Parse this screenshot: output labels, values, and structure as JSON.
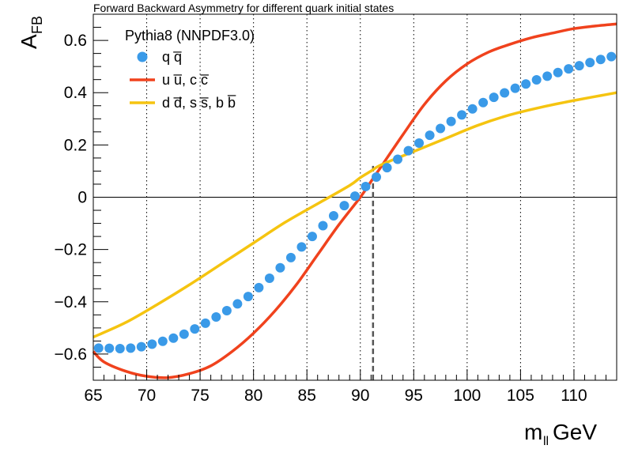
{
  "chart_data": {
    "type": "line",
    "title": "Forward Backward Asymmetry for different quark initial states",
    "xlabel": {
      "main": "m",
      "sub": "ll",
      "unit": "GeV"
    },
    "ylabel": {
      "main": "A",
      "sub": "FB"
    },
    "xlim": [
      65,
      114
    ],
    "ylim": [
      -0.7,
      0.7
    ],
    "x_ticks": [
      65,
      70,
      75,
      80,
      85,
      90,
      95,
      100,
      105,
      110
    ],
    "x_tick_labels": [
      "65",
      "70",
      "75",
      "80",
      "85",
      "90",
      "95",
      "100",
      "105",
      "110"
    ],
    "y_ticks": [
      -0.6,
      -0.4,
      -0.2,
      0,
      0.2,
      0.4,
      0.6
    ],
    "y_tick_labels": [
      "−0.6",
      "−0.4",
      "−0.2",
      "0",
      "0.2",
      "0.4",
      "0.6"
    ],
    "vertical_gridlines": [
      70,
      75,
      80,
      85,
      90,
      95,
      100,
      105,
      110
    ],
    "z_mass_line": 91.19,
    "legend": {
      "header": "Pythia8 (NNPDF3.0)",
      "placement": "top-left",
      "entries": [
        {
          "label": "q q̅",
          "series": "qqbar"
        },
        {
          "label": "u u̅, c c̅",
          "series": "up"
        },
        {
          "label": "d d̅, s s̅, b b̅",
          "series": "down"
        }
      ]
    },
    "series": [
      {
        "name": "q q̅",
        "id": "qqbar",
        "style": "markers",
        "color": "#3a9ae8",
        "x": [
          65.5,
          66.5,
          67.5,
          68.5,
          69.5,
          70.5,
          71.5,
          72.5,
          73.5,
          74.5,
          75.5,
          76.5,
          77.5,
          78.5,
          79.5,
          80.5,
          81.5,
          82.5,
          83.5,
          84.5,
          85.5,
          86.5,
          87.5,
          88.5,
          89.5,
          90.5,
          91.5,
          92.5,
          93.5,
          94.5,
          95.5,
          96.5,
          97.5,
          98.5,
          99.5,
          100.5,
          101.5,
          102.5,
          103.5,
          104.5,
          105.5,
          106.5,
          107.5,
          108.5,
          109.5,
          110.5,
          111.5,
          112.5,
          113.5
        ],
        "y": [
          -0.577,
          -0.578,
          -0.579,
          -0.577,
          -0.572,
          -0.562,
          -0.551,
          -0.539,
          -0.524,
          -0.504,
          -0.482,
          -0.458,
          -0.434,
          -0.408,
          -0.38,
          -0.346,
          -0.31,
          -0.27,
          -0.231,
          -0.19,
          -0.15,
          -0.109,
          -0.071,
          -0.032,
          0.004,
          0.041,
          0.077,
          0.113,
          0.145,
          0.178,
          0.207,
          0.237,
          0.263,
          0.29,
          0.315,
          0.338,
          0.362,
          0.382,
          0.399,
          0.417,
          0.433,
          0.449,
          0.463,
          0.477,
          0.491,
          0.503,
          0.515,
          0.527,
          0.538
        ]
      },
      {
        "name": "u u̅, c c̅",
        "id": "up",
        "style": "line",
        "color": "#f0421d",
        "x": [
          65,
          66,
          68,
          70,
          72,
          74,
          76,
          78,
          80,
          82,
          84,
          86,
          88,
          90,
          91,
          92,
          94,
          96,
          98,
          100,
          102,
          104,
          106,
          108,
          110,
          112,
          114
        ],
        "y": [
          -0.59,
          -0.63,
          -0.665,
          -0.685,
          -0.69,
          -0.675,
          -0.645,
          -0.59,
          -0.52,
          -0.435,
          -0.335,
          -0.22,
          -0.105,
          0.0,
          0.06,
          0.12,
          0.24,
          0.355,
          0.445,
          0.51,
          0.555,
          0.585,
          0.61,
          0.628,
          0.645,
          0.655,
          0.663
        ]
      },
      {
        "name": "d d̅, s s̅, b b̅",
        "id": "down",
        "style": "line",
        "color": "#f5c410",
        "x": [
          65,
          68,
          71,
          74,
          77,
          80,
          83,
          86,
          89,
          90,
          91,
          92,
          95,
          98,
          101,
          104,
          107,
          110,
          114
        ],
        "y": [
          -0.535,
          -0.48,
          -0.41,
          -0.335,
          -0.255,
          -0.175,
          -0.095,
          -0.025,
          0.045,
          0.075,
          0.1,
          0.125,
          0.175,
          0.225,
          0.275,
          0.315,
          0.345,
          0.37,
          0.4
        ]
      }
    ]
  }
}
